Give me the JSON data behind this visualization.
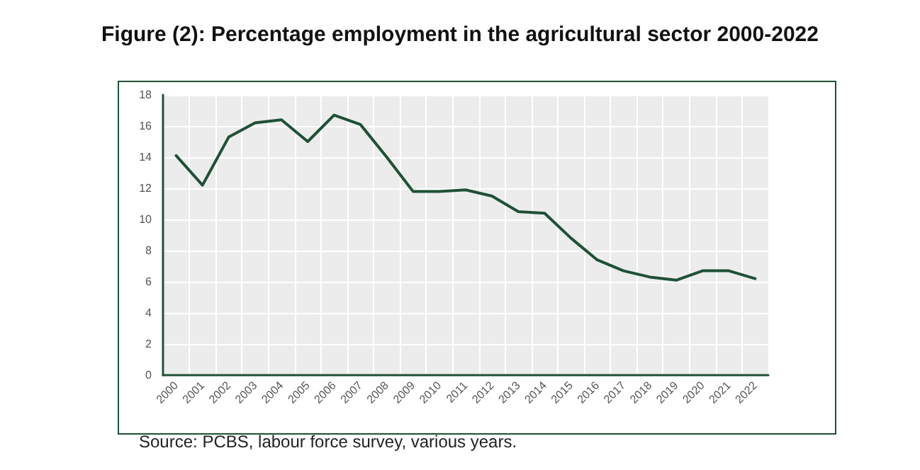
{
  "chart_data": {
    "type": "line",
    "title": "Figure (2): Percentage employment in the agricultural sector 2000-2022",
    "categories": [
      "2000",
      "2001",
      "2002",
      "2003",
      "2004",
      "2005",
      "2006",
      "2007",
      "2008",
      "2009",
      "2010",
      "2011",
      "2012",
      "2013",
      "2014",
      "2015",
      "2016",
      "2017",
      "2018",
      "2019",
      "2020",
      "2021",
      "2022"
    ],
    "series": [
      {
        "color": "#1f5036",
        "values": [
          14.1,
          12.2,
          15.3,
          16.2,
          16.4,
          15.0,
          16.7,
          16.1,
          14.0,
          11.8,
          11.8,
          11.9,
          11.5,
          10.5,
          10.4,
          8.8,
          7.4,
          6.7,
          6.3,
          6.1,
          6.7,
          6.7,
          6.2
        ]
      }
    ],
    "ylim": [
      0,
      18
    ],
    "yticks": [
      0,
      2,
      4,
      6,
      8,
      10,
      12,
      14,
      16,
      18
    ],
    "grid": true,
    "marker": "none",
    "line_style": "solid",
    "annotations": [
      "Source: PCBS, labour force survey, various years."
    ]
  }
}
